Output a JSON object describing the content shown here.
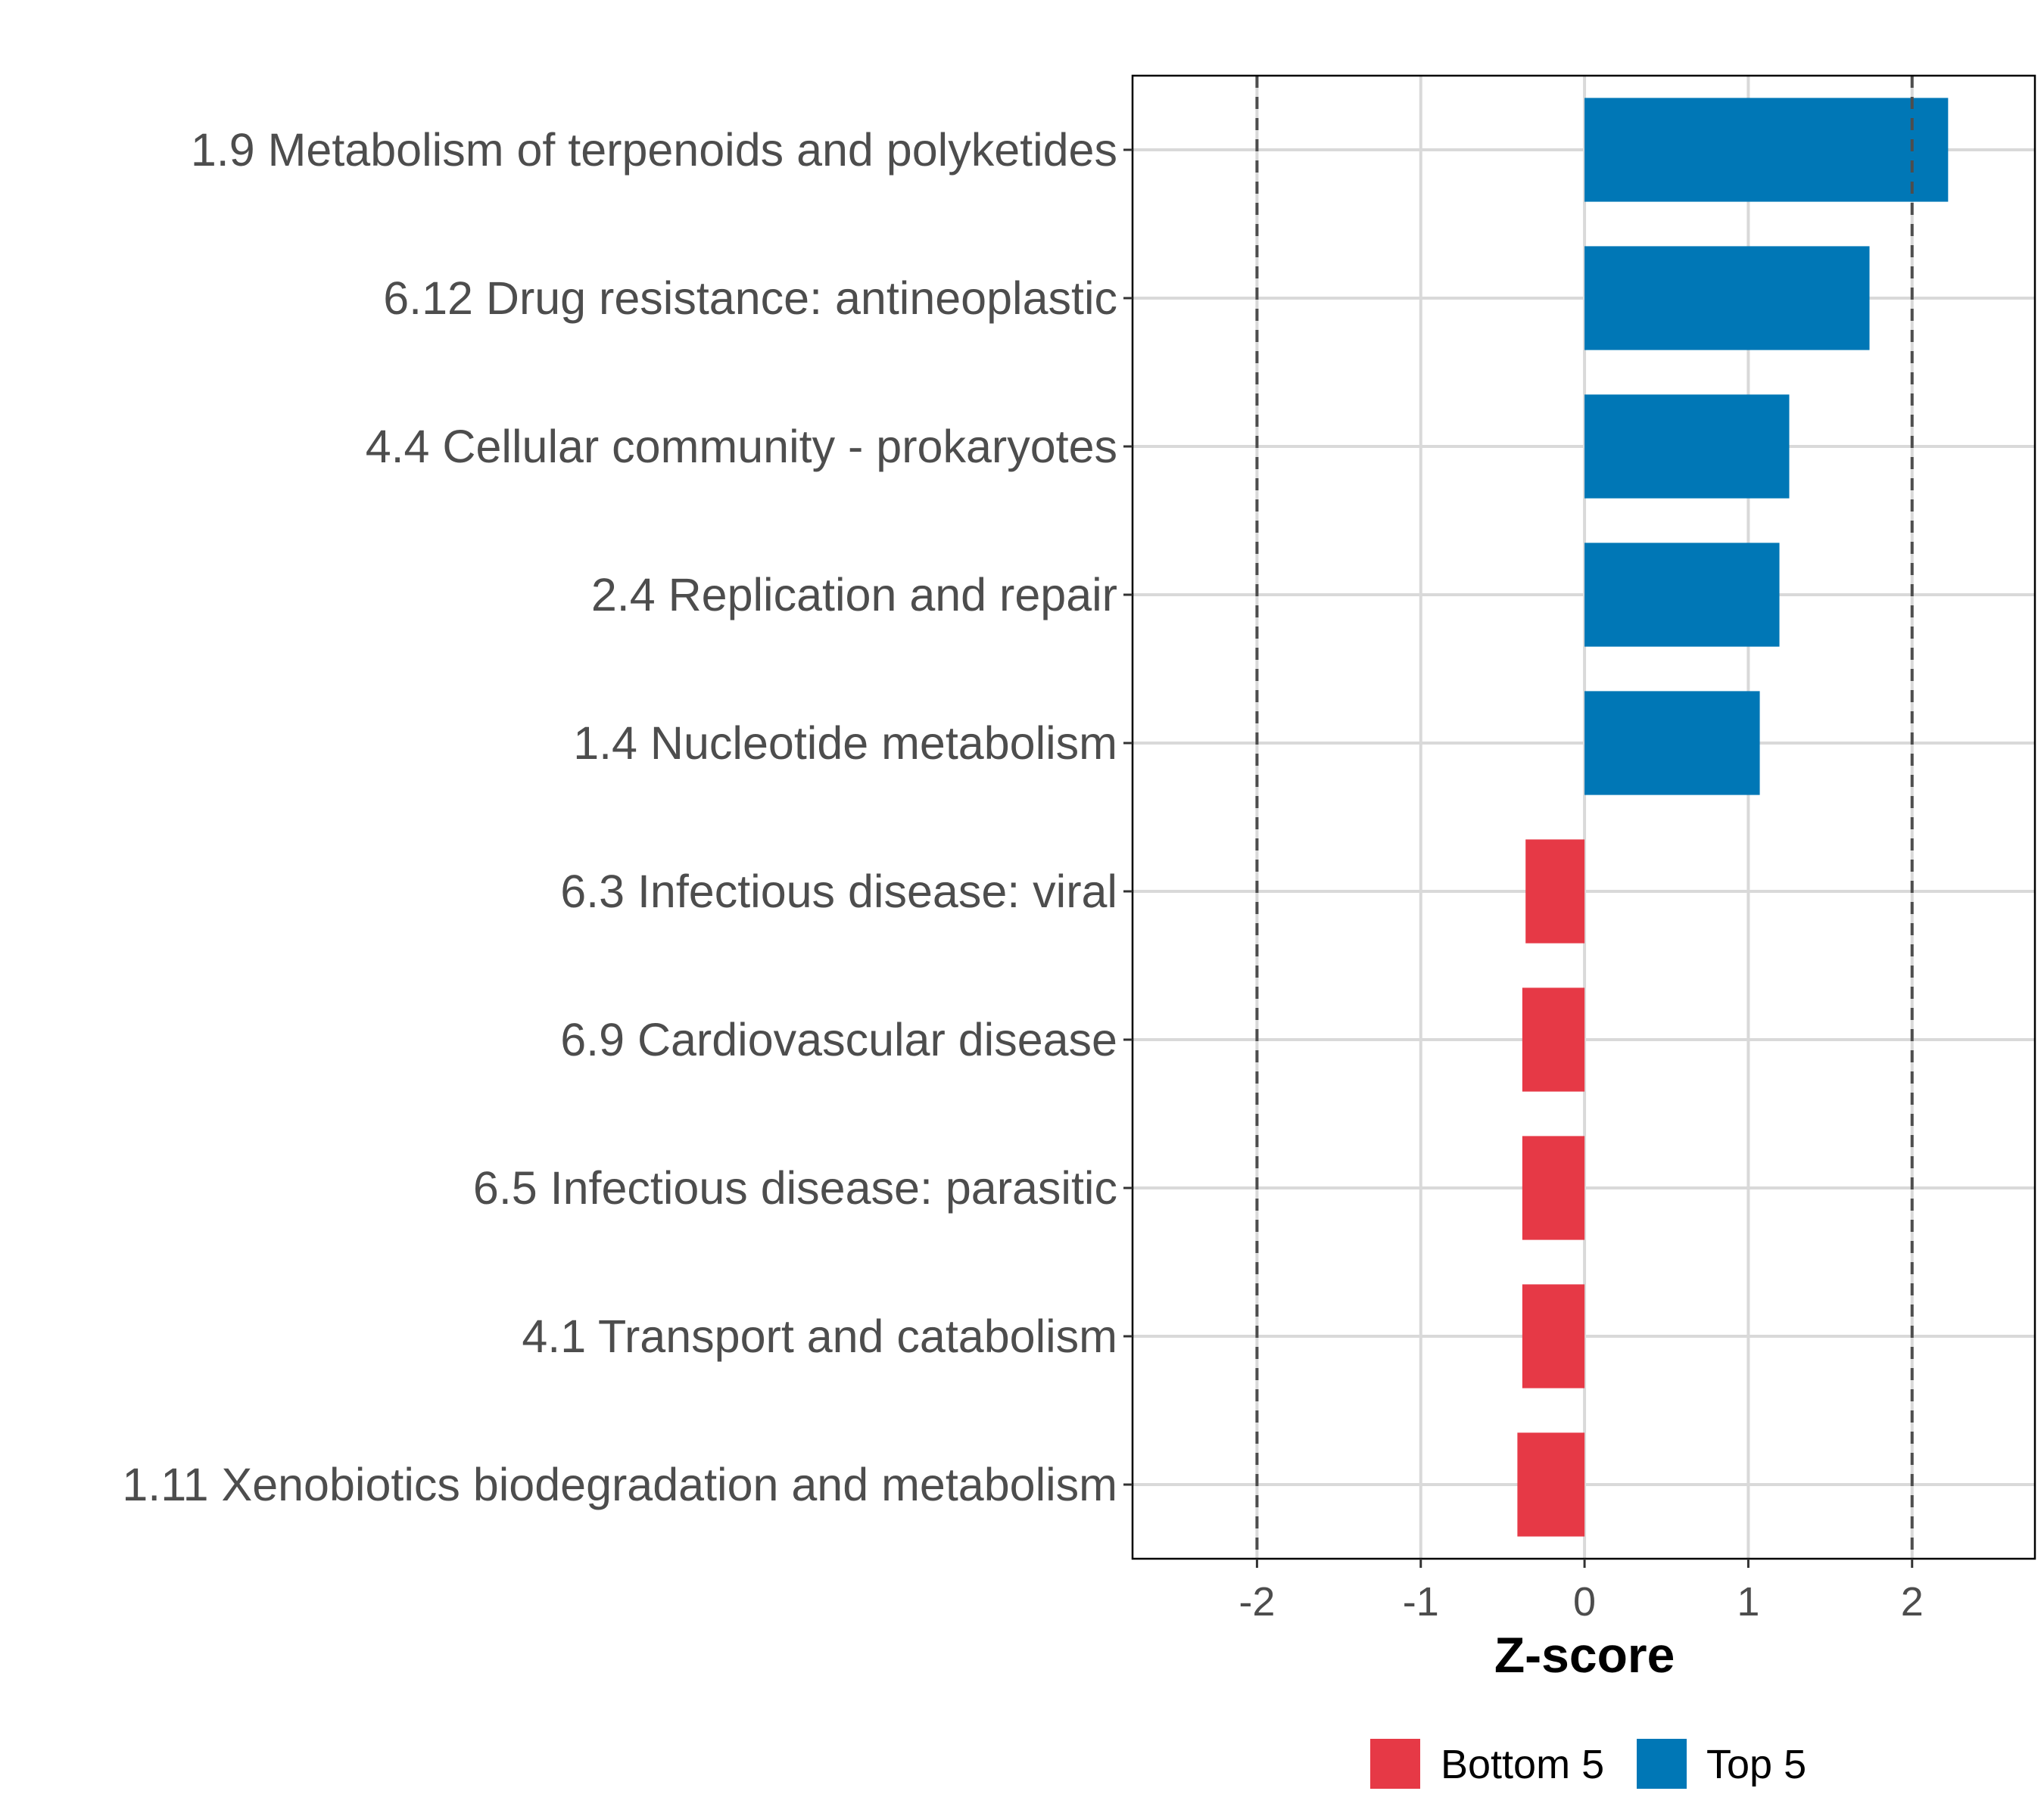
{
  "chart_data": {
    "type": "bar",
    "orientation": "horizontal",
    "title": "",
    "xlabel": "Z-score",
    "ylabel": "",
    "xlim": [
      -2.76,
      2.75
    ],
    "xticks": [
      -2,
      -1,
      0,
      1,
      2
    ],
    "xtick_labels": [
      "-2",
      "-1",
      "0",
      "1",
      "2"
    ],
    "reference_lines": [
      -2,
      2
    ],
    "grid": true,
    "legend_position": "bottom",
    "categories": [
      "1.9 Metabolism of terpenoids and polyketides",
      "6.12 Drug resistance: antineoplastic",
      "4.4 Cellular community - prokaryotes",
      "2.4 Replication and repair",
      "1.4 Nucleotide metabolism",
      "6.3 Infectious disease: viral",
      "6.9 Cardiovascular disease",
      "6.5 Infectious disease: parasitic",
      "4.1 Transport and catabolism",
      "1.11 Xenobiotics biodegradation and metabolism"
    ],
    "values": [
      2.22,
      1.74,
      1.25,
      1.19,
      1.07,
      -0.36,
      -0.38,
      -0.38,
      -0.38,
      -0.41
    ],
    "groups": [
      "Top 5",
      "Top 5",
      "Top 5",
      "Top 5",
      "Top 5",
      "Bottom 5",
      "Bottom 5",
      "Bottom 5",
      "Bottom 5",
      "Bottom 5"
    ],
    "legend": [
      {
        "name": "Bottom 5",
        "color": "#E63946"
      },
      {
        "name": "Top 5",
        "color": "#0077B6"
      }
    ]
  }
}
